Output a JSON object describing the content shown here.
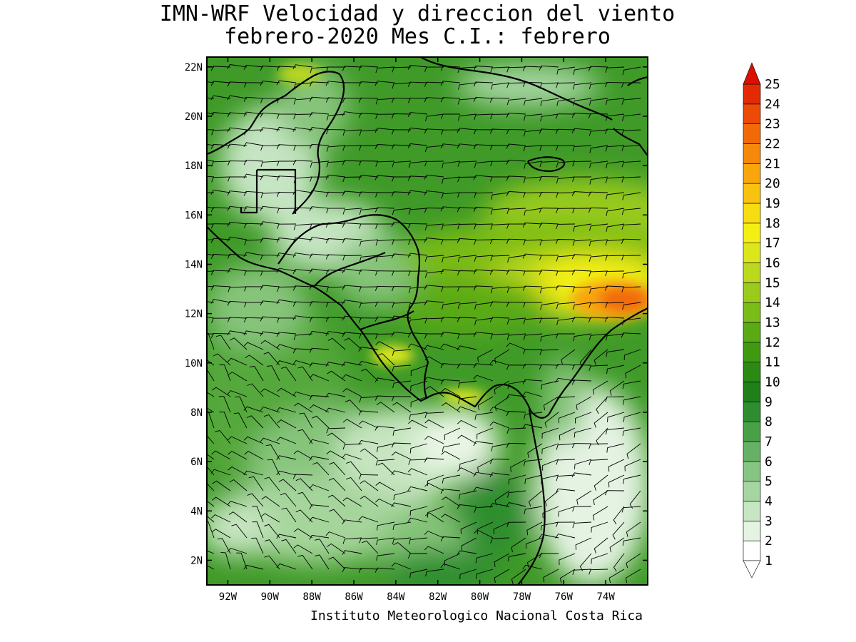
{
  "title": {
    "line1": "IMN-WRF Velocidad y direccion del viento",
    "line2": "febrero-2020 Mes C.I.: febrero"
  },
  "map": {
    "lon_range": [
      -93,
      -72
    ],
    "lat_range": [
      1,
      22.4
    ],
    "lat_ticks": [
      {
        "value": 22,
        "label": "22N"
      },
      {
        "value": 20,
        "label": "20N"
      },
      {
        "value": 18,
        "label": "18N"
      },
      {
        "value": 16,
        "label": "16N"
      },
      {
        "value": 14,
        "label": "14N"
      },
      {
        "value": 12,
        "label": "12N"
      },
      {
        "value": 10,
        "label": "10N"
      },
      {
        "value": 8,
        "label": "8N"
      },
      {
        "value": 6,
        "label": "6N"
      },
      {
        "value": 4,
        "label": "4N"
      },
      {
        "value": 2,
        "label": "2N"
      }
    ],
    "lon_ticks": [
      {
        "value": -92,
        "label": "92W"
      },
      {
        "value": -90,
        "label": "90W"
      },
      {
        "value": -88,
        "label": "88W"
      },
      {
        "value": -86,
        "label": "86W"
      },
      {
        "value": -84,
        "label": "84W"
      },
      {
        "value": -82,
        "label": "82W"
      },
      {
        "value": -80,
        "label": "80W"
      },
      {
        "value": -78,
        "label": "78W"
      },
      {
        "value": -76,
        "label": "76W"
      },
      {
        "value": -74,
        "label": "74W"
      }
    ],
    "wind_max_region": {
      "lon": -74.5,
      "lat": 12.3,
      "speed": 22
    }
  },
  "colorbar": {
    "levels": [
      "1",
      "2",
      "3",
      "4",
      "5",
      "6",
      "7",
      "8",
      "9",
      "10",
      "11",
      "12",
      "13",
      "14",
      "15",
      "16",
      "17",
      "18",
      "19",
      "20",
      "21",
      "22",
      "23",
      "24",
      "25"
    ],
    "colors": [
      "#ffffff",
      "#e4f3e2",
      "#c6e5c3",
      "#a6d5a2",
      "#86c483",
      "#66b264",
      "#48a047",
      "#2e8e2f",
      "#1f8019",
      "#2a8a14",
      "#3f9a12",
      "#5aaa14",
      "#7abc18",
      "#9acb1c",
      "#bcd81c",
      "#dce61a",
      "#f4ef12",
      "#f7dc10",
      "#f8c20e",
      "#f8a60c",
      "#f6880a",
      "#f26a08",
      "#ec4a06",
      "#e42a04",
      "#dc1002"
    ]
  },
  "footer": "Instituto Meteorologico Nacional Costa Rica"
}
